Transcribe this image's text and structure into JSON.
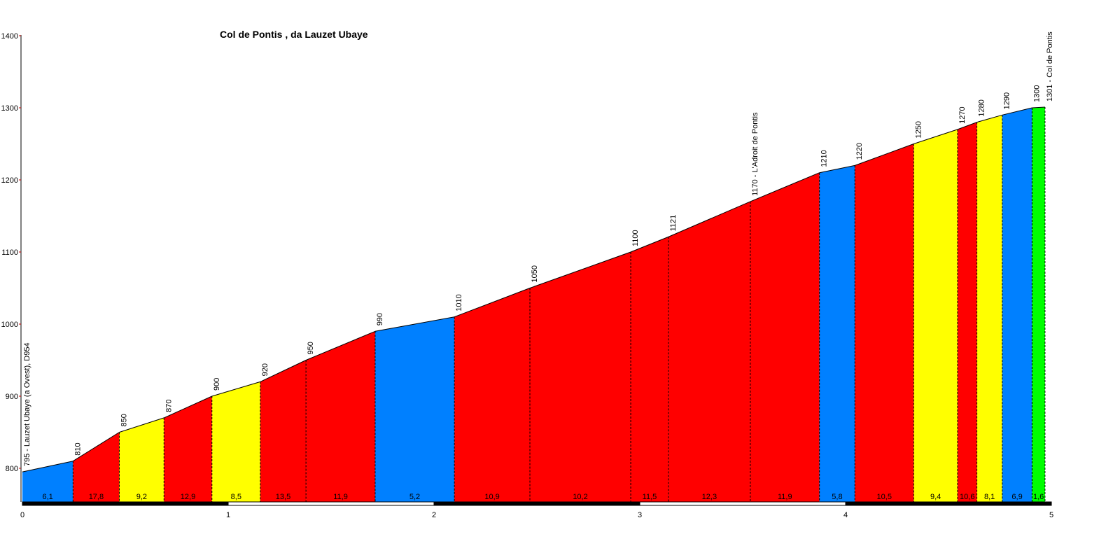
{
  "chart_data": {
    "type": "area",
    "title": "Col de Pontis , da Lauzet Ubaye",
    "xlabel": "",
    "ylabel": "",
    "xlim": [
      0,
      5
    ],
    "ylim": [
      753,
      1400
    ],
    "x_ticks": [
      "0",
      "1",
      "2",
      "3",
      "4",
      "5"
    ],
    "y_ticks": [
      "800",
      "900",
      "1000",
      "1100",
      "1200",
      "1300",
      "1400"
    ],
    "grid": false,
    "points": [
      {
        "x": 0,
        "y": 795,
        "label": "795 - Lauzet Ubaye (a Ovest), D954"
      },
      {
        "x": 0.246,
        "y": 810,
        "label": "810"
      },
      {
        "x": 0.471,
        "y": 850,
        "label": "850"
      },
      {
        "x": 0.688,
        "y": 870,
        "label": "870"
      },
      {
        "x": 0.921,
        "y": 900,
        "label": "900"
      },
      {
        "x": 1.156,
        "y": 920,
        "label": "920"
      },
      {
        "x": 1.378,
        "y": 950,
        "label": "950"
      },
      {
        "x": 1.714,
        "y": 990,
        "label": "990"
      },
      {
        "x": 2.099,
        "y": 1010,
        "label": "1010"
      },
      {
        "x": 2.466,
        "y": 1050,
        "label": "1050"
      },
      {
        "x": 2.956,
        "y": 1100,
        "label": "1100"
      },
      {
        "x": 3.139,
        "y": 1121,
        "label": "1121"
      },
      {
        "x": 3.537,
        "y": 1170,
        "label": "1170 - L'Adroit de Pontis"
      },
      {
        "x": 3.873,
        "y": 1210,
        "label": "1210"
      },
      {
        "x": 4.045,
        "y": 1220,
        "label": "1220"
      },
      {
        "x": 4.331,
        "y": 1250,
        "label": "1250"
      },
      {
        "x": 4.544,
        "y": 1270,
        "label": "1270"
      },
      {
        "x": 4.638,
        "y": 1280,
        "label": "1280"
      },
      {
        "x": 4.761,
        "y": 1290,
        "label": "1290"
      },
      {
        "x": 4.906,
        "y": 1300,
        "label": "1300"
      },
      {
        "x": 4.969,
        "y": 1301,
        "label": "1301 - Col de Pontis"
      }
    ],
    "gradients": [
      "6,1",
      "17,8",
      "9,2",
      "12,9",
      "8,5",
      "13,5",
      "11,9",
      "5,2",
      "10,9",
      "10,2",
      "11,5",
      "12,3",
      "11,9",
      "5,8",
      "10,5",
      "9,4",
      "10,6",
      "8,1",
      "6,9",
      "1,6"
    ],
    "segment_colors": [
      "#0080ff",
      "#ff0000",
      "#ffff00",
      "#ff0000",
      "#ffff00",
      "#ff0000",
      "#ff0000",
      "#0080ff",
      "#ff0000",
      "#ff0000",
      "#ff0000",
      "#ff0000",
      "#ff0000",
      "#0080ff",
      "#ff0000",
      "#ffff00",
      "#ff0000",
      "#ffff00",
      "#0080ff",
      "#00ff00"
    ]
  }
}
